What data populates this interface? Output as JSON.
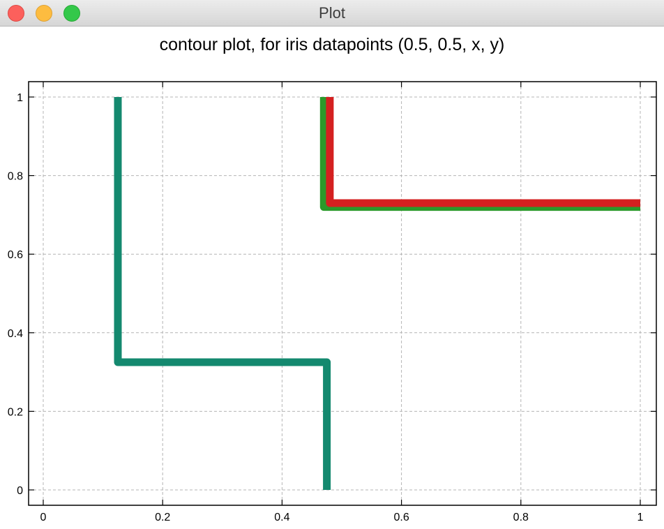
{
  "window": {
    "title": "Plot",
    "buttons": [
      "close",
      "minimize",
      "maximize"
    ]
  },
  "colors": {
    "red": "#d42020",
    "green": "#2a9a2a",
    "teal": "#14896f",
    "grid": "#b4b4b4"
  },
  "chart_data": {
    "type": "line",
    "title": "contour plot, for iris datapoints (0.5, 0.5, x, y)",
    "xlabel": "",
    "ylabel": "",
    "xlim": [
      0,
      1
    ],
    "ylim": [
      0,
      1
    ],
    "xticks": [
      0,
      0.2,
      0.4,
      0.6,
      0.8,
      1
    ],
    "xtick_labels": [
      "0",
      "0.2",
      "0.4",
      "0.6",
      "0.8",
      "1"
    ],
    "yticks": [
      0,
      0.2,
      0.4,
      0.6,
      0.8,
      1
    ],
    "ytick_labels": [
      "0",
      "0.2",
      "0.4",
      "0.6",
      "0.8",
      "1"
    ],
    "grid": true,
    "legend": false,
    "series": [
      {
        "color": "#2a9a2a",
        "x": [
          0.47,
          0.47,
          1.0
        ],
        "y": [
          1.0,
          0.72,
          0.72
        ]
      },
      {
        "color": "#d42020",
        "x": [
          0.48,
          0.48,
          1.0
        ],
        "y": [
          1.0,
          0.73,
          0.73
        ]
      },
      {
        "color": "#14896f",
        "x": [
          0.125,
          0.125,
          0.475,
          0.475
        ],
        "y": [
          1.0,
          0.325,
          0.325,
          0.0
        ]
      }
    ]
  }
}
